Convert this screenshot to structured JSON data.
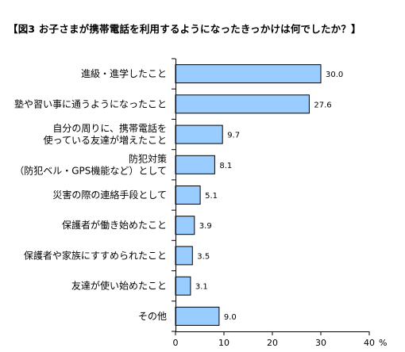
{
  "chart_data": {
    "type": "bar",
    "orientation": "horizontal",
    "title": "【図3 お子さまが携帯電話を利用するようになったきっかけは何でしたか？】",
    "categories": [
      [
        "進級・進学したこと"
      ],
      [
        "塾や習い事に通うようになったこと"
      ],
      [
        "自分の周りに、携帯電話を",
        "使っている友達が増えたこと"
      ],
      [
        "防犯対策",
        "（防犯ベル・GPS機能など）として"
      ],
      [
        "災害の際の連絡手段として"
      ],
      [
        "保護者が働き始めたこと"
      ],
      [
        "保護者や家族にすすめられたこと"
      ],
      [
        "友達が使い始めたこと"
      ],
      [
        "その他"
      ]
    ],
    "values": [
      30.0,
      27.6,
      9.7,
      8.1,
      5.1,
      3.9,
      3.5,
      3.1,
      9.0
    ],
    "value_labels": [
      "30.0",
      "27.6",
      "9.7",
      "8.1",
      "5.1",
      "3.9",
      "3.5",
      "3.1",
      "9.0"
    ],
    "xlim": [
      0,
      40
    ],
    "xticks": [
      "0",
      "10",
      "20",
      "30",
      "40"
    ],
    "unit": "%",
    "grid": false,
    "colors": {
      "bar_fill": "#99ccff",
      "bar_stroke": "#000000",
      "axis": "#000000"
    }
  }
}
